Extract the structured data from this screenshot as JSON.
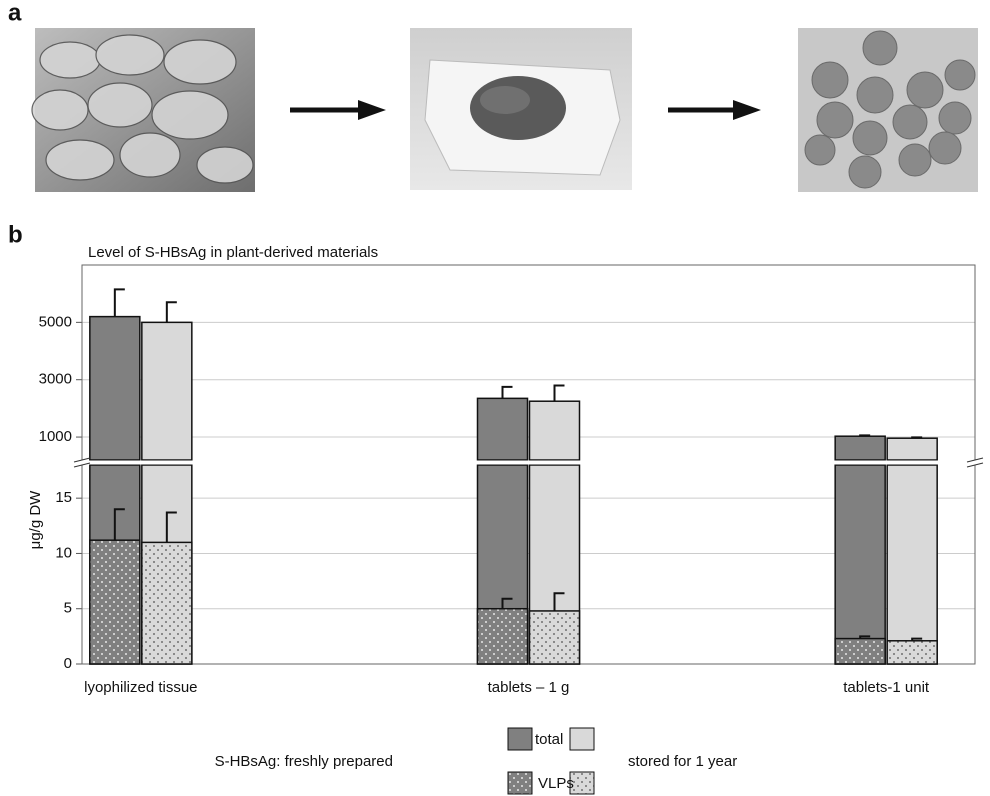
{
  "figure": {
    "panel_a_label": "a",
    "panel_b_label": "b"
  },
  "chart_data": {
    "type": "bar",
    "title": "Level of S-HBsAg in plant-derived materials",
    "ylabel": "μg/g DW",
    "categories": [
      "lyophilized tissue",
      "tablets – 1 g",
      "tablets-1 unit"
    ],
    "ylim": [
      0,
      18
    ],
    "yticks": [
      0,
      5,
      10,
      15
    ],
    "ylim_upper": [
      200,
      7000
    ],
    "yticks_upper": [
      1000,
      3000,
      5000
    ],
    "grid": true,
    "measure_labels": [
      "total",
      "VLPs"
    ],
    "series": [
      {
        "name": "S-HBsAg: freshly prepared",
        "color": "#808080",
        "dot_color": "#e6e6e6",
        "values": [
          5200,
          2350,
          1030
        ],
        "errors": [
          950,
          400,
          30
        ],
        "vlp_values": [
          11.2,
          5.0,
          2.3
        ],
        "vlp_errors": [
          2.8,
          0.9,
          0.2
        ]
      },
      {
        "name": "stored for 1 year",
        "color": "#d9d9d9",
        "dot_color": "#707070",
        "values": [
          5000,
          2250,
          960
        ],
        "errors": [
          700,
          550,
          30
        ],
        "vlp_values": [
          11.0,
          4.8,
          2.1
        ],
        "vlp_errors": [
          2.7,
          1.6,
          0.2
        ]
      }
    ]
  }
}
